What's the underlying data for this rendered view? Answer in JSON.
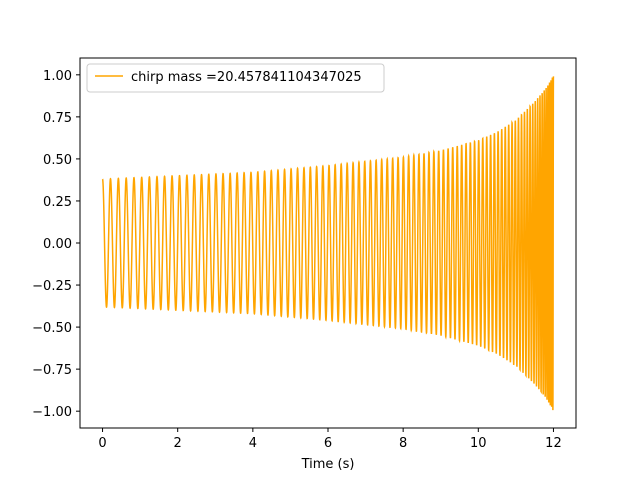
{
  "chart_data": {
    "type": "line",
    "title": "",
    "xlabel": "Time (s)",
    "ylabel": "",
    "xlim": [
      -0.6,
      12.6
    ],
    "ylim": [
      -1.1,
      1.1
    ],
    "xticks": [
      0,
      2,
      4,
      6,
      8,
      10,
      12
    ],
    "xtick_labels": [
      "0",
      "2",
      "4",
      "6",
      "8",
      "10",
      "12"
    ],
    "yticks": [
      -1.0,
      -0.75,
      -0.5,
      -0.25,
      0.0,
      0.25,
      0.5,
      0.75,
      1.0
    ],
    "ytick_labels": [
      "−1.00",
      "−0.75",
      "−0.50",
      "−0.25",
      "0.00",
      "0.25",
      "0.50",
      "0.75",
      "1.00"
    ],
    "grid": false,
    "legend": {
      "position": "upper-left",
      "entries": [
        "chirp mass =20.457841104347025"
      ]
    },
    "series": [
      {
        "name": "chirp mass =20.457841104347025",
        "color": "#ffa500",
        "kind": "chirp oscillation",
        "x_range": [
          0,
          12
        ],
        "envelope": {
          "t": [
            0,
            2,
            4,
            6,
            8,
            9,
            10,
            10.5,
            11,
            11.5,
            11.8,
            12
          ],
          "amplitude": [
            0.38,
            0.4,
            0.42,
            0.46,
            0.51,
            0.55,
            0.61,
            0.66,
            0.73,
            0.84,
            0.92,
            1.0
          ]
        }
      }
    ]
  }
}
